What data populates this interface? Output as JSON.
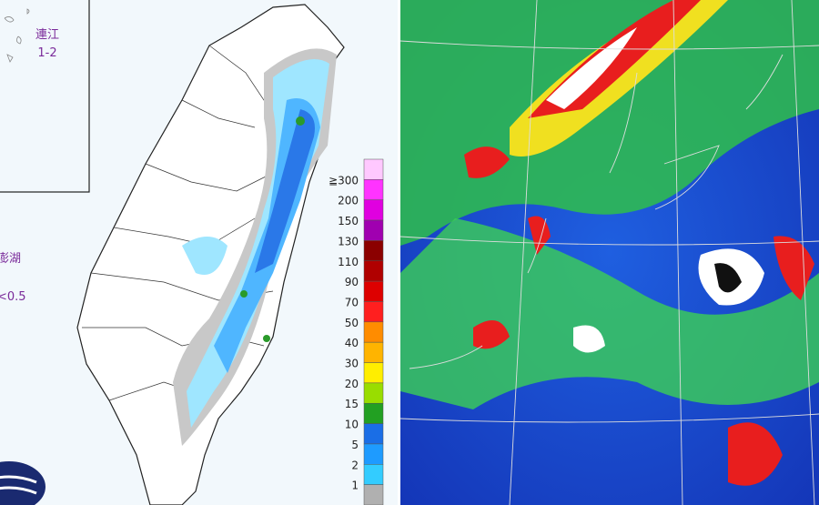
{
  "rain_map": {
    "islands": [
      {
        "name": "連江",
        "value": "1-2"
      },
      {
        "name": "澎湖",
        "value": "<0.5"
      }
    ],
    "legend": {
      "labels": [
        "≧300",
        "200",
        "150",
        "130",
        "110",
        "90",
        "70",
        "50",
        "40",
        "30",
        "20",
        "15",
        "10",
        "5",
        "2",
        "1"
      ],
      "colors": [
        "#ffc8ff",
        "#ff33ff",
        "#e000e0",
        "#a000b0",
        "#8b0000",
        "#b00000",
        "#dd0000",
        "#ff1f1f",
        "#ff8c00",
        "#ffb400",
        "#ffee00",
        "#99dd00",
        "#22a022",
        "#1a6ee6",
        "#1e9bff",
        "#33ccff",
        "#b0b0b0"
      ]
    }
  }
}
